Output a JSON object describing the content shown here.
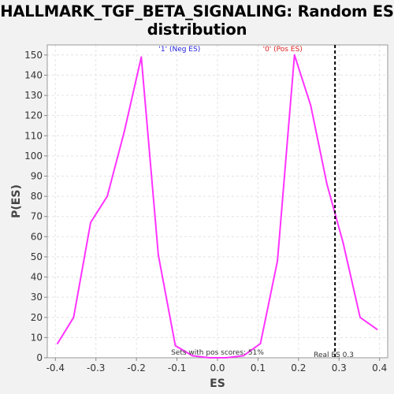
{
  "chart_data": {
    "type": "line",
    "title_lines": [
      "HALLMARK_TGF_BETA_SIGNALING: Random ES",
      "distribution"
    ],
    "xlabel": "ES",
    "ylabel": "P(ES)",
    "xlim": [
      -0.42,
      0.42
    ],
    "ylim": [
      0,
      155
    ],
    "x_ticks": [
      -0.4,
      -0.3,
      -0.2,
      -0.1,
      0.0,
      0.1,
      0.2,
      0.3,
      0.4
    ],
    "x_tick_labels": [
      "-0.4",
      "-0.3",
      "-0.2",
      "-0.1",
      "0.0",
      "0.1",
      "0.2",
      "0.3",
      "0.4"
    ],
    "y_ticks": [
      0,
      10,
      20,
      30,
      40,
      50,
      60,
      70,
      80,
      90,
      100,
      110,
      120,
      130,
      140,
      150
    ],
    "y_tick_labels": [
      "0",
      "10",
      "20",
      "30",
      "40",
      "50",
      "60",
      "70",
      "80",
      "90",
      "100",
      "110",
      "120",
      "130",
      "140",
      "150"
    ],
    "grid": true,
    "series": [
      {
        "color": "#ff33ff",
        "x": [
          -0.395,
          -0.355,
          -0.313,
          -0.272,
          -0.23,
          -0.188,
          -0.146,
          -0.104,
          -0.062,
          -0.02,
          0.022,
          0.064,
          0.106,
          0.148,
          0.19,
          0.23,
          0.27,
          0.31,
          0.352,
          0.394
        ],
        "values": [
          7,
          20,
          67,
          80,
          112,
          149,
          51,
          6,
          1,
          0,
          0,
          1,
          7,
          48,
          150,
          125,
          86,
          57,
          20,
          14
        ]
      }
    ],
    "real_es": {
      "x": 0.29,
      "label": "Real ES 0.3",
      "color": "#000000"
    },
    "annotations": {
      "neg": {
        "text": "'1' (Neg ES)",
        "color": "#2222dd",
        "x": -0.145,
        "y": 153
      },
      "pos": {
        "text": "'0' (Pos ES)",
        "color": "#dd2222",
        "x": 0.112,
        "y": 153
      },
      "sets": {
        "text": "Sets with pos scores: 51%",
        "color": "#333333",
        "x": 0.0,
        "y": 1.5
      }
    }
  }
}
